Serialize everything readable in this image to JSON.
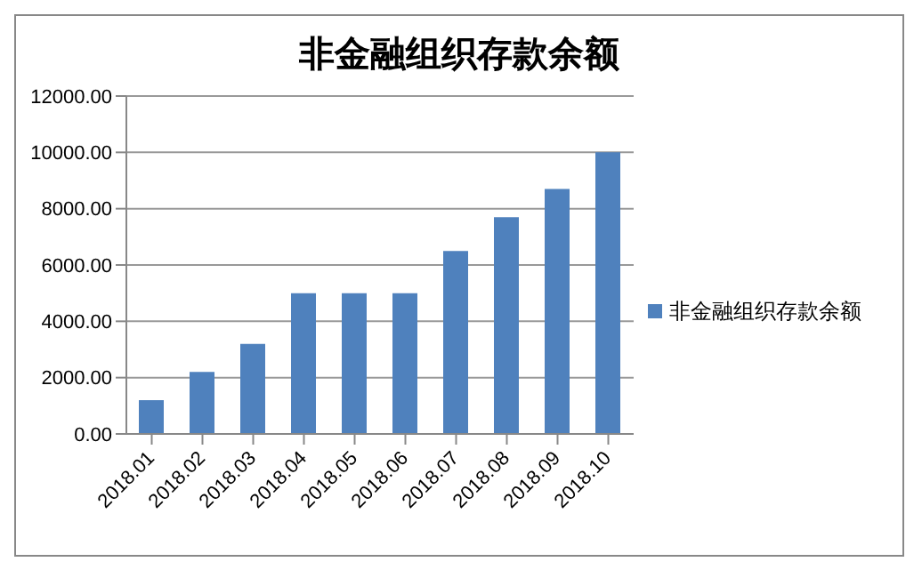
{
  "chart_data": {
    "type": "bar",
    "title": "非金融组织存款余额",
    "categories": [
      "2018.01",
      "2018.02",
      "2018.03",
      "2018.04",
      "2018.05",
      "2018.06",
      "2018.07",
      "2018.08",
      "2018.09",
      "2018.10"
    ],
    "series": [
      {
        "name": "非金融组织存款余额",
        "color": "#4f81bd",
        "values": [
          1200,
          2200,
          3200,
          5000,
          5000,
          5000,
          6500,
          7700,
          8700,
          10000
        ]
      }
    ],
    "ylim": [
      0,
      12000
    ],
    "yticks": [
      {
        "value": 0,
        "label": "0.00"
      },
      {
        "value": 2000,
        "label": "2000.00"
      },
      {
        "value": 4000,
        "label": "4000.00"
      },
      {
        "value": 6000,
        "label": "6000.00"
      },
      {
        "value": 8000,
        "label": "8000.00"
      },
      {
        "value": 10000,
        "label": "10000.00"
      },
      {
        "value": 12000,
        "label": "12000.00"
      }
    ],
    "grid": "y",
    "legend": "right"
  }
}
